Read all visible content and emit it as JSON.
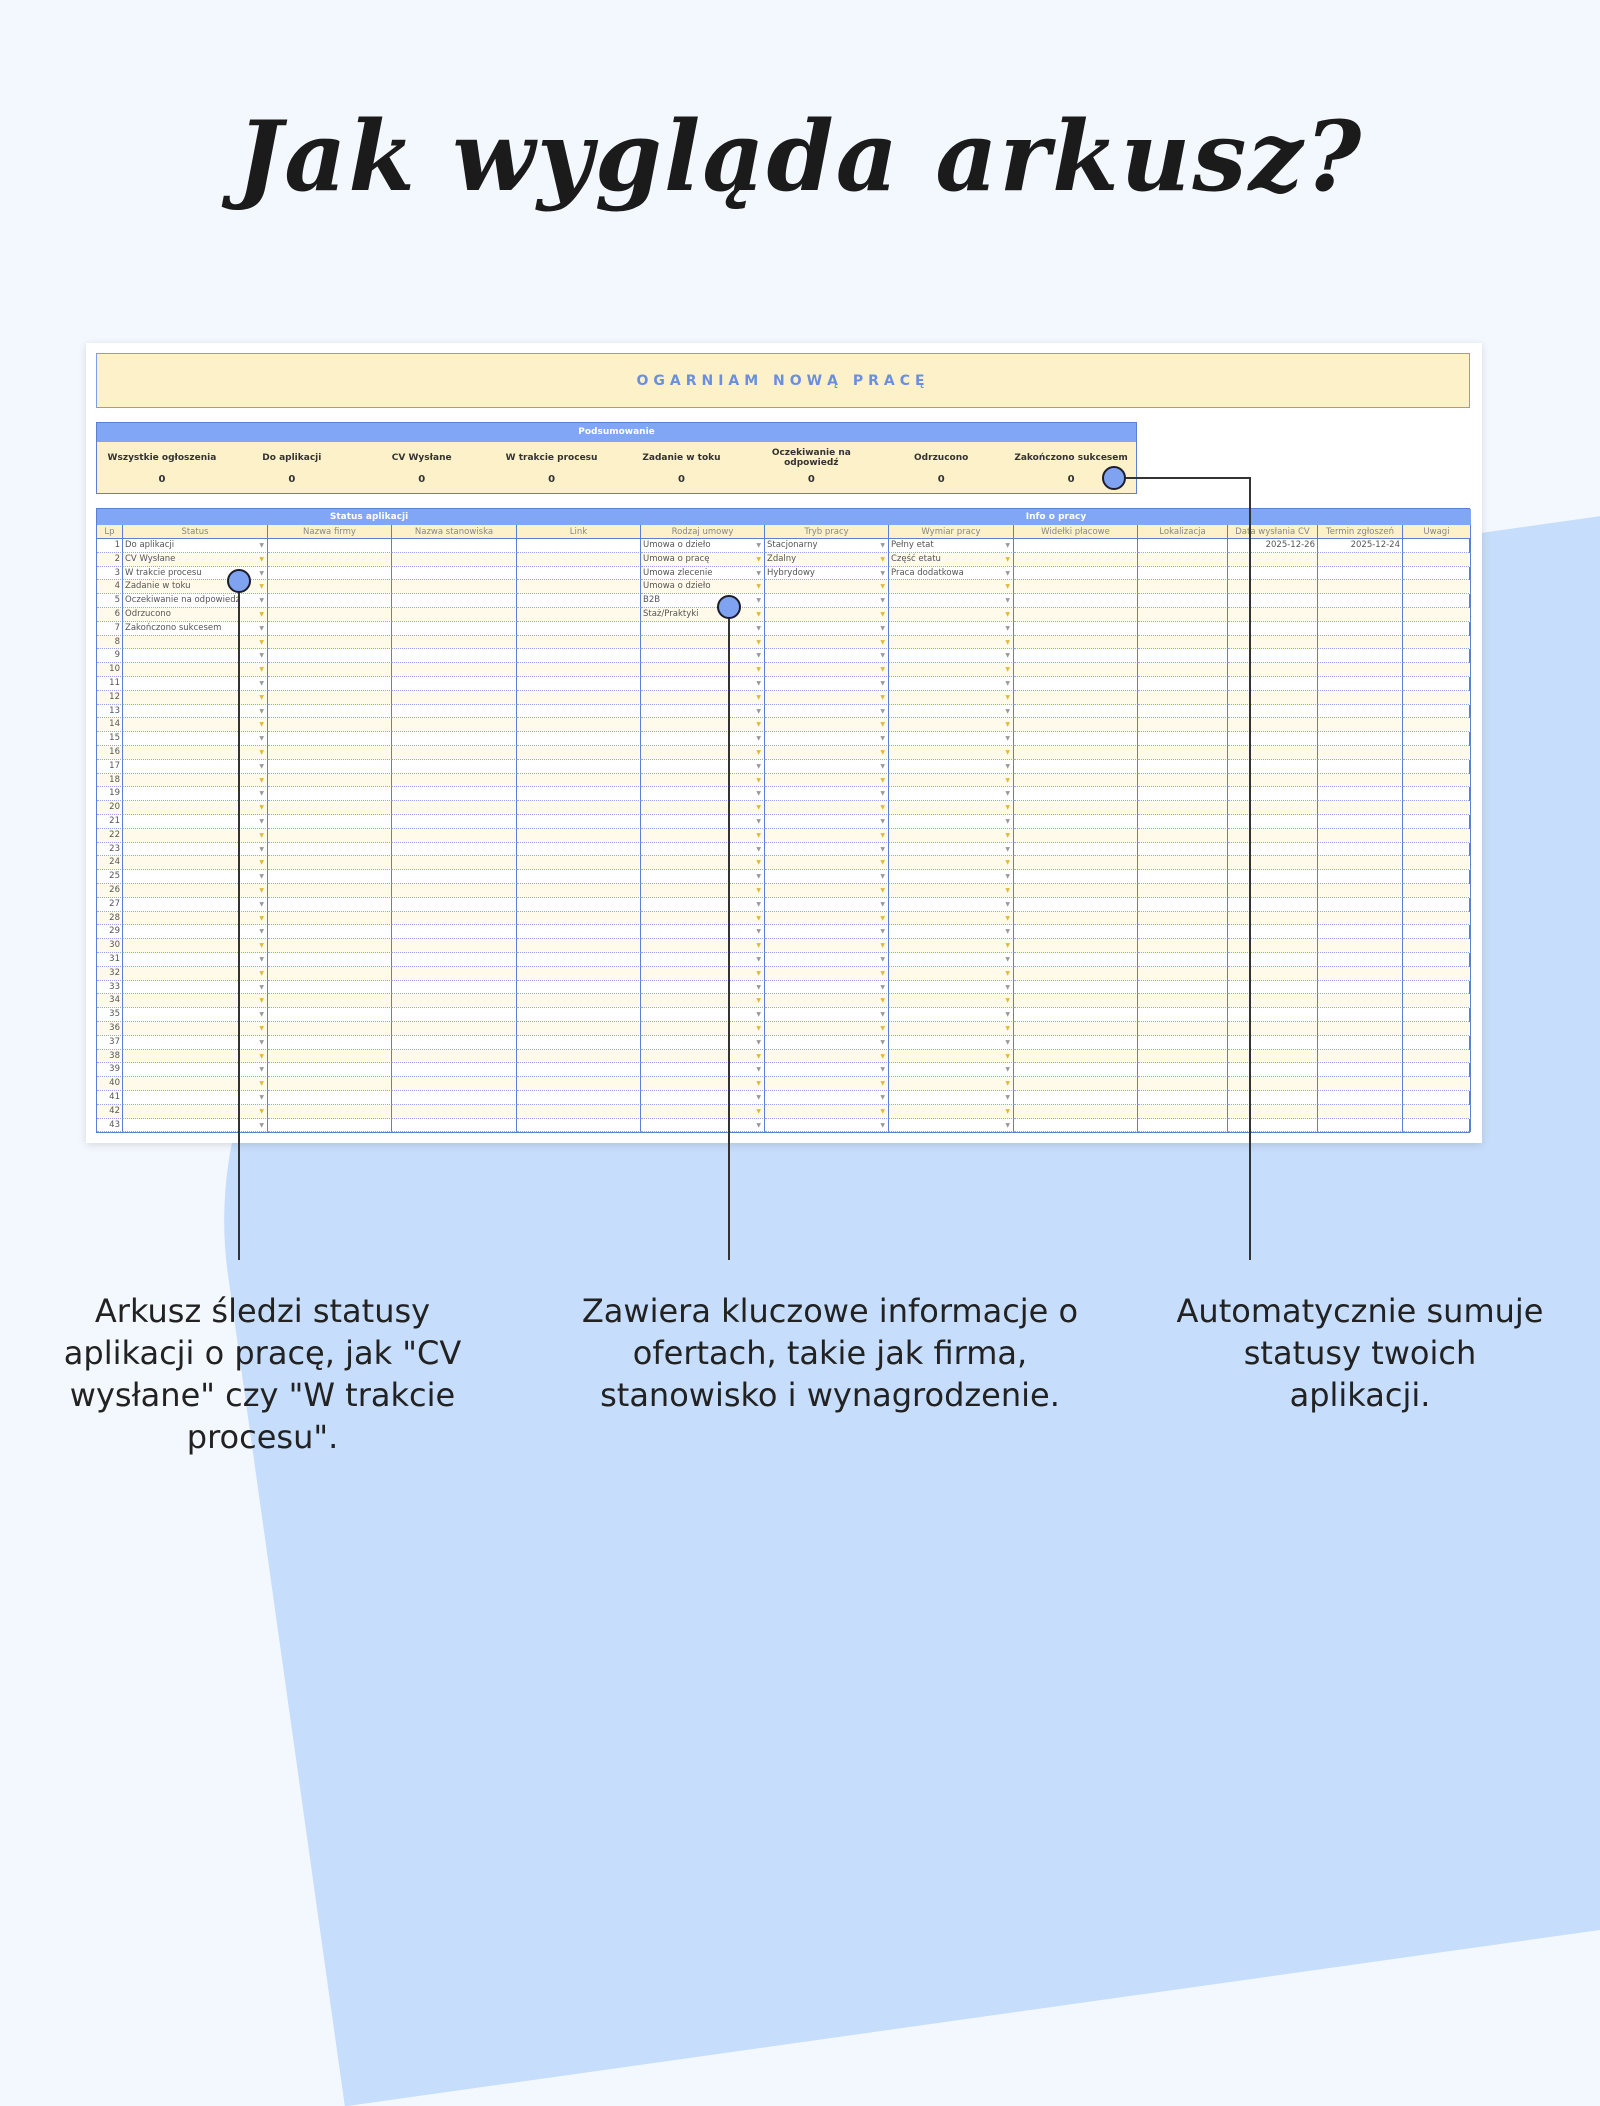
{
  "heading": "Jak wygląda arkusz?",
  "sheet": {
    "banner": "OGARNIAM NOWĄ PRACĘ",
    "summary": {
      "title": "Podsumowanie",
      "items": [
        {
          "label": "Wszystkie ogłoszenia",
          "value": "0"
        },
        {
          "label": "Do aplikacji",
          "value": "0"
        },
        {
          "label": "CV Wysłane",
          "value": "0"
        },
        {
          "label": "W trakcie procesu",
          "value": "0"
        },
        {
          "label": "Zadanie w toku",
          "value": "0"
        },
        {
          "label": "Oczekiwanie na odpowiedź",
          "value": "0"
        },
        {
          "label": "Odrzucono",
          "value": "0"
        },
        {
          "label": "Zakończono sukcesem",
          "value": "0"
        }
      ]
    },
    "groups": [
      "Status aplikacji",
      "Info o pracy"
    ],
    "columns": [
      "Lp",
      "Status",
      "Nazwa firmy",
      "Nazwa stanowiska",
      "Link",
      "Rodzaj umowy",
      "Tryb pracy",
      "Wymiar pracy",
      "Widełki płacowe",
      "Lokalizacja",
      "Data wysłania CV",
      "Termin zgłoszeń",
      "Uwagi"
    ],
    "row_count": 43,
    "status_values": [
      "Do aplikacji",
      "CV Wysłane",
      "W trakcie procesu",
      "Zadanie w toku",
      "Oczekiwanie na odpowiedź",
      "Odrzucono",
      "Zakończono sukcesem"
    ],
    "contract_values": [
      "Umowa o dzieło",
      "Umowa o pracę",
      "Umowa zlecenie",
      "Umowa o dzieło",
      "B2B",
      "Staż/Praktyki"
    ],
    "mode_values": [
      "Stacjonarny",
      "Zdalny",
      "Hybrydowy"
    ],
    "time_values": [
      "Pełny etat",
      "Część etatu",
      "Praca dodatkowa"
    ],
    "sent_date": "2025-12-26",
    "deadline": "2025-12-24"
  },
  "captions": [
    "Arkusz śledzi statusy aplikacji o pracę, jak \"CV wysłane\" czy \"W trakcie procesu\".",
    "Zawiera kluczowe informacje o ofertach, takie jak firma, stanowisko i wynagrodzenie.",
    "Automatycznie sumuje statusy twoich aplikacji."
  ]
}
